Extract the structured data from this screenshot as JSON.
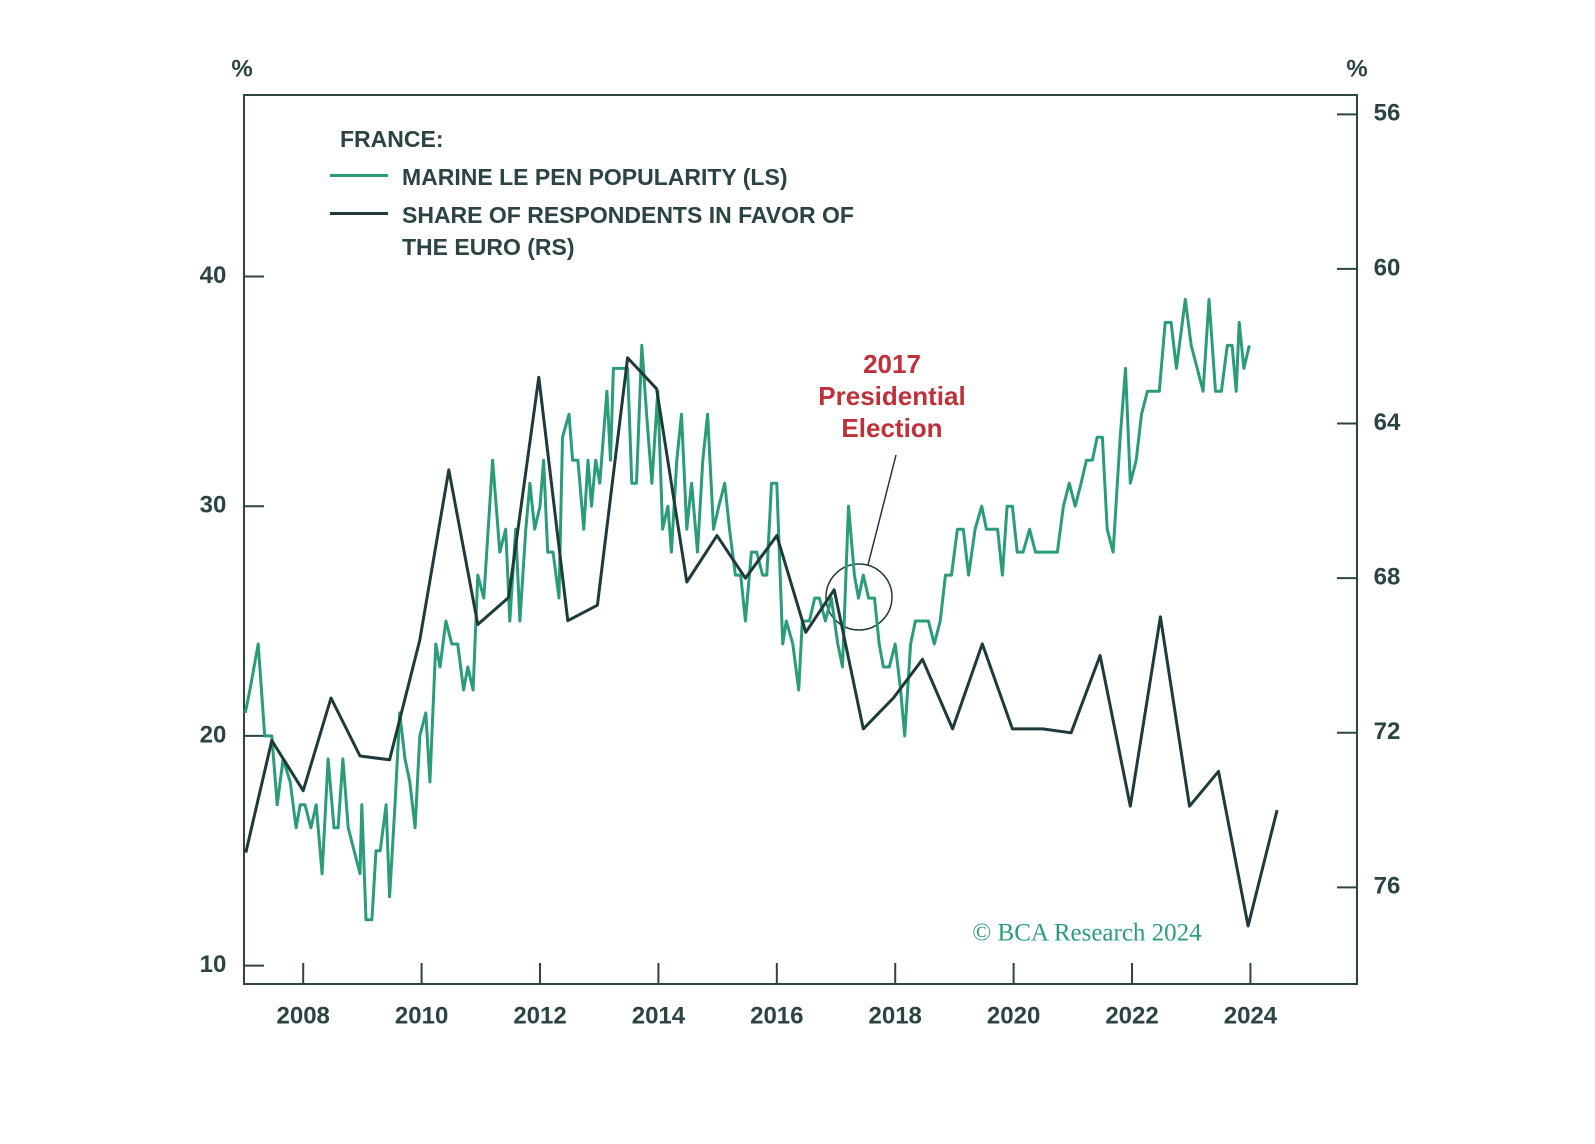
{
  "chart_data": {
    "type": "line",
    "legend_title": "FRANCE:",
    "ylabel": "%",
    "y2label": "%",
    "xlim": [
      2007,
      2025.8
    ],
    "xticks": [
      2008,
      2010,
      2012,
      2014,
      2016,
      2018,
      2020,
      2022,
      2024
    ],
    "ylim": [
      9.2,
      47.9
    ],
    "yticks": [
      10,
      20,
      30,
      40
    ],
    "y2lim": [
      78.5,
      55.5
    ],
    "y2ticks": [
      56,
      60,
      64,
      68,
      72,
      76
    ],
    "annotation": [
      "2017",
      "Presidential",
      "Election"
    ],
    "source": "© BCA Research 2024",
    "series": [
      {
        "name": "MARINE LE PEN POPULARITY (LS)",
        "color": "#2a9d78",
        "x": [
          2007.02,
          2007.1,
          2007.24,
          2007.35,
          2007.47,
          2007.56,
          2007.66,
          2007.78,
          2007.88,
          2007.95,
          2008.03,
          2008.13,
          2008.22,
          2008.32,
          2008.42,
          2008.52,
          2008.59,
          2008.67,
          2008.76,
          2008.86,
          2008.96,
          2008.99,
          2009.06,
          2009.16,
          2009.23,
          2009.3,
          2009.4,
          2009.46,
          2009.55,
          2009.63,
          2009.72,
          2009.8,
          2009.89,
          2009.97,
          2010.07,
          2010.14,
          2010.24,
          2010.31,
          2010.41,
          2010.51,
          2010.61,
          2010.71,
          2010.78,
          2010.87,
          2010.95,
          2011.05,
          2011.2,
          2011.32,
          2011.42,
          2011.49,
          2011.59,
          2011.66,
          2011.76,
          2011.83,
          2011.91,
          2012.0,
          2012.06,
          2012.13,
          2012.22,
          2012.32,
          2012.38,
          2012.49,
          2012.55,
          2012.64,
          2012.74,
          2012.81,
          2012.87,
          2012.94,
          2013.01,
          2013.13,
          2013.19,
          2013.24,
          2013.36,
          2013.48,
          2013.55,
          2013.63,
          2013.72,
          2013.8,
          2013.89,
          2013.99,
          2014.07,
          2014.16,
          2014.22,
          2014.31,
          2014.39,
          2014.48,
          2014.56,
          2014.66,
          2014.75,
          2014.83,
          2014.93,
          2015.02,
          2015.12,
          2015.2,
          2015.3,
          2015.39,
          2015.47,
          2015.57,
          2015.66,
          2015.76,
          2015.83,
          2015.91,
          2016.0,
          2016.1,
          2016.16,
          2016.27,
          2016.37,
          2016.43,
          2016.55,
          2016.64,
          2016.72,
          2016.82,
          2016.92,
          2017.03,
          2017.11,
          2017.21,
          2017.31,
          2017.38,
          2017.46,
          2017.55,
          2017.65,
          2017.73,
          2017.8,
          2017.9,
          2018.0,
          2018.09,
          2018.16,
          2018.26,
          2018.34,
          2018.46,
          2018.56,
          2018.66,
          2018.76,
          2018.85,
          2018.95,
          2019.05,
          2019.15,
          2019.24,
          2019.35,
          2019.46,
          2019.54,
          2019.64,
          2019.73,
          2019.81,
          2019.89,
          2019.98,
          2020.06,
          2020.16,
          2020.27,
          2020.37,
          2020.57,
          2020.74,
          2020.84,
          2020.94,
          2021.04,
          2021.14,
          2021.23,
          2021.33,
          2021.41,
          2021.5,
          2021.58,
          2021.68,
          2021.8,
          2021.89,
          2021.97,
          2022.07,
          2022.16,
          2022.26,
          2022.46,
          2022.56,
          2022.66,
          2022.75,
          2022.9,
          2023.0,
          2023.1,
          2023.2,
          2023.3,
          2023.41,
          2023.51,
          2023.61,
          2023.69,
          2023.76,
          2023.81,
          2023.89,
          2023.98
        ],
        "values": [
          21,
          22,
          24,
          20,
          20,
          17,
          19,
          18,
          16,
          17,
          17,
          16,
          17,
          14,
          19,
          16,
          16,
          19,
          16,
          15,
          14,
          17,
          12,
          12,
          15,
          15,
          17,
          13,
          17,
          21,
          19,
          18,
          16,
          20,
          21,
          18,
          24,
          23,
          25,
          24,
          24,
          22,
          23,
          22,
          27,
          26,
          32,
          28,
          29,
          25,
          29,
          25,
          29,
          31,
          29,
          30,
          32,
          28,
          28,
          26,
          33,
          34,
          32,
          32,
          29,
          32,
          30,
          32,
          31,
          35,
          32,
          36,
          36,
          36,
          31,
          31,
          37,
          34,
          31,
          35,
          29,
          30,
          28,
          32,
          34,
          29,
          31,
          28,
          32,
          34,
          29,
          30,
          31,
          29,
          27,
          27,
          25,
          28,
          28,
          27,
          27,
          31,
          31,
          24,
          25,
          24,
          22,
          25,
          25,
          26,
          26,
          25,
          26,
          24,
          23,
          30,
          27,
          26,
          27,
          26,
          26,
          24,
          23,
          23,
          24,
          22,
          20,
          24,
          25,
          25,
          25,
          24,
          25,
          27,
          27,
          29,
          29,
          27,
          29,
          30,
          29,
          29,
          29,
          27,
          30,
          30,
          28,
          28,
          29,
          28,
          28,
          28,
          30,
          31,
          30,
          31,
          32,
          32,
          33,
          33,
          29,
          28,
          33,
          36,
          31,
          32,
          34,
          35,
          35,
          38,
          38,
          36,
          39,
          37,
          36,
          35,
          39,
          35,
          35,
          37,
          37,
          35,
          38,
          36,
          37
        ]
      },
      {
        "name": "SHARE OF RESPONDENTS IN FAVOR OF THE EURO (RS)",
        "color": "#1f3a3a",
        "axis": "y2",
        "x": [
          2007.03,
          2007.47,
          2008.0,
          2008.47,
          2008.96,
          2009.46,
          2009.97,
          2010.46,
          2010.95,
          2011.47,
          2011.98,
          2012.47,
          2012.97,
          2013.48,
          2013.97,
          2014.48,
          2014.99,
          2015.47,
          2016.0,
          2016.49,
          2016.97,
          2017.46,
          2017.97,
          2018.46,
          2018.97,
          2019.47,
          2019.98,
          2020.49,
          2020.97,
          2021.46,
          2021.97,
          2022.48,
          2022.97,
          2023.46,
          2023.96,
          2024.45
        ],
        "values": [
          75.1,
          72.2,
          73.5,
          71.1,
          72.6,
          72.7,
          69.6,
          65.2,
          69.2,
          68.5,
          62.8,
          69.1,
          68.7,
          62.3,
          63.1,
          68.1,
          66.9,
          68.0,
          66.9,
          69.4,
          68.3,
          71.9,
          71.1,
          70.1,
          71.9,
          69.7,
          71.9,
          71.9,
          72.0,
          70.0,
          73.9,
          69.0,
          73.9,
          73.0,
          77.0,
          74.0
        ]
      }
    ]
  }
}
